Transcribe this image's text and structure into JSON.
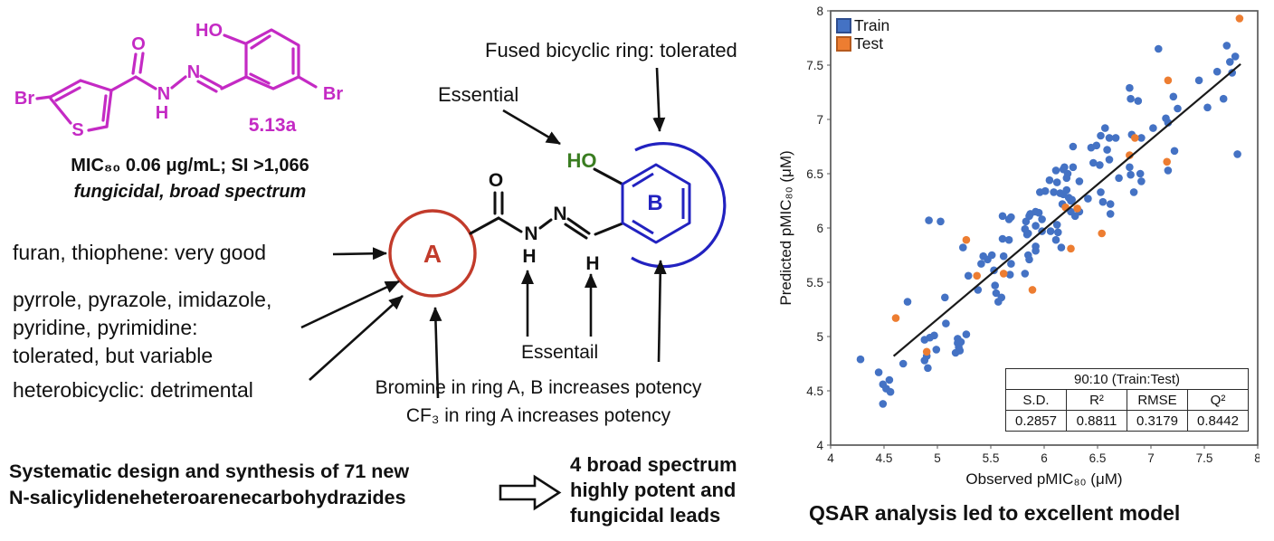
{
  "colors": {
    "lead_structure": "#C42AC4",
    "ring_a": "#C23B2B",
    "ring_b": "#2222C0",
    "hydroxyl_green": "#3A7D21",
    "train_blue": "#4472C4",
    "test_orange": "#ED7D31",
    "trendline": "#1a1a1a"
  },
  "lead_compound": {
    "id": "5.13a",
    "atoms": {
      "br_left": "Br",
      "s": "S",
      "o": "O",
      "n1": "N",
      "h1": "H",
      "n2": "N",
      "ho": "HO",
      "br_right": "Br"
    },
    "mic_line": "MIC₈₀ 0.06 μg/mL; SI >1,066",
    "activity_line": "fungicidal, broad spectrum"
  },
  "sar": {
    "ring_a": "A",
    "ring_b": "B",
    "atoms": {
      "o": "O",
      "n1": "N",
      "h1": "H",
      "n2": "N",
      "h2": "H",
      "ho": "HO"
    },
    "annotations": {
      "fused_ring": "Fused bicyclic ring: tolerated",
      "essential_oh": "Essential",
      "furan": "furan, thiophene: very good",
      "azoles": "pyrrole, pyrazole, imidazole,\npyridine, pyrimidine:\ntolerated, but variable",
      "heterobicyclic": "heterobicyclic: detrimental",
      "essential_linker": "Essentail",
      "bromine": "Bromine in ring A, B increases potency",
      "cf3": "CF₃ in ring A increases potency"
    }
  },
  "summary": {
    "design": "Systematic design and synthesis of 71 new\nN-salicylideneheteroarenecarbohydrazides",
    "outcome": "4 broad spectrum\nhighly potent and\nfungicidal leads"
  },
  "qsar": {
    "caption": "QSAR analysis led to excellent model",
    "table": {
      "title": "90:10 (Train:Test)",
      "columns": [
        "S.D.",
        "R²",
        "RMSE",
        "Q²"
      ],
      "values": [
        "0.2857",
        "0.8811",
        "0.3179",
        "0.8442"
      ]
    }
  },
  "chart_data": {
    "type": "scatter",
    "title": "",
    "xlabel": "Observed pMIC₈₀ (μM)",
    "ylabel": "Predicted pMIC₈₀ (μM)",
    "xlim": [
      4,
      8
    ],
    "ylim": [
      4,
      8
    ],
    "xticks": [
      4,
      4.5,
      5,
      5.5,
      6,
      6.5,
      7,
      7.5,
      8
    ],
    "yticks": [
      4,
      4.5,
      5,
      5.5,
      6,
      6.5,
      7,
      7.5,
      8
    ],
    "grid": false,
    "legend_position": "top-left",
    "trendline": {
      "from": [
        4.59,
        4.82
      ],
      "to": [
        7.84,
        7.51
      ],
      "color": "#1a1a1a"
    },
    "series": [
      {
        "name": "Train",
        "color": "#4472C4",
        "edge": "#2E4D8E",
        "points": [
          [
            4.28,
            4.79
          ],
          [
            4.45,
            4.67
          ],
          [
            4.49,
            4.56
          ],
          [
            4.49,
            4.38
          ],
          [
            4.52,
            4.52
          ],
          [
            4.55,
            4.6
          ],
          [
            4.56,
            4.49
          ],
          [
            4.68,
            4.75
          ],
          [
            4.72,
            5.32
          ],
          [
            4.88,
            4.97
          ],
          [
            4.88,
            4.78
          ],
          [
            4.9,
            4.82
          ],
          [
            4.91,
            4.71
          ],
          [
            4.93,
            4.99
          ],
          [
            4.97,
            5.01
          ],
          [
            4.99,
            4.88
          ],
          [
            5.07,
            5.36
          ],
          [
            5.08,
            5.12
          ],
          [
            5.17,
            4.85
          ],
          [
            5.19,
            4.94
          ],
          [
            5.19,
            4.98
          ],
          [
            5.2,
            4.9
          ],
          [
            5.21,
            4.87
          ],
          [
            5.22,
            4.95
          ],
          [
            5.24,
            5.82
          ],
          [
            5.27,
            5.02
          ],
          [
            5.29,
            5.56
          ],
          [
            5.38,
            5.43
          ],
          [
            5.41,
            5.67
          ],
          [
            5.43,
            5.74
          ],
          [
            5.47,
            5.71
          ],
          [
            5.51,
            5.75
          ],
          [
            5.53,
            5.61
          ],
          [
            5.54,
            5.47
          ],
          [
            5.55,
            5.4
          ],
          [
            5.57,
            5.32
          ],
          [
            5.6,
            5.36
          ],
          [
            5.61,
            5.9
          ],
          [
            5.62,
            5.74
          ],
          [
            5.67,
            5.89
          ],
          [
            5.68,
            5.57
          ],
          [
            5.69,
            5.67
          ],
          [
            5.82,
            5.99
          ],
          [
            5.84,
            5.94
          ],
          [
            5.85,
            5.75
          ],
          [
            5.86,
            5.71
          ],
          [
            5.82,
            5.58
          ],
          [
            5.92,
            5.83
          ],
          [
            5.92,
            5.79
          ],
          [
            5.98,
            5.97
          ],
          [
            4.92,
            6.07
          ],
          [
            5.03,
            6.06
          ],
          [
            5.61,
            6.11
          ],
          [
            5.67,
            6.08
          ],
          [
            5.96,
            6.33
          ],
          [
            5.92,
            6.15
          ],
          [
            5.86,
            6.11
          ],
          [
            5.95,
            6.14
          ],
          [
            5.98,
            6.08
          ],
          [
            6.06,
            5.97
          ],
          [
            6.13,
            5.96
          ],
          [
            6.11,
            5.89
          ],
          [
            6.16,
            5.82
          ],
          [
            6.05,
            6.44
          ],
          [
            6.09,
            6.33
          ],
          [
            6.11,
            6.53
          ],
          [
            6.12,
            6.42
          ],
          [
            6.15,
            6.32
          ],
          [
            6.17,
            6.22
          ],
          [
            6.18,
            6.31
          ],
          [
            6.19,
            6.56
          ],
          [
            6.21,
            6.46
          ],
          [
            6.21,
            6.35
          ],
          [
            6.23,
            6.28
          ],
          [
            6.25,
            6.15
          ],
          [
            6.26,
            6.26
          ],
          [
            6.27,
            6.75
          ],
          [
            6.29,
            6.11
          ],
          [
            6.33,
            6.15
          ],
          [
            6.44,
            6.74
          ],
          [
            6.46,
            6.6
          ],
          [
            6.49,
            6.76
          ],
          [
            6.52,
            6.58
          ],
          [
            6.53,
            6.33
          ],
          [
            6.55,
            6.24
          ],
          [
            6.57,
            6.92
          ],
          [
            6.59,
            6.72
          ],
          [
            6.61,
            6.83
          ],
          [
            6.61,
            6.63
          ],
          [
            6.62,
            6.22
          ],
          [
            6.62,
            6.13
          ],
          [
            6.67,
            6.83
          ],
          [
            6.7,
            6.46
          ],
          [
            6.8,
            7.29
          ],
          [
            6.8,
            6.56
          ],
          [
            6.81,
            7.19
          ],
          [
            6.81,
            6.49
          ],
          [
            6.82,
            6.86
          ],
          [
            6.84,
            6.33
          ],
          [
            6.88,
            7.17
          ],
          [
            6.9,
            6.5
          ],
          [
            6.91,
            6.83
          ],
          [
            6.91,
            6.43
          ],
          [
            7.02,
            6.92
          ],
          [
            7.07,
            7.65
          ],
          [
            7.14,
            7.01
          ],
          [
            7.16,
            6.97
          ],
          [
            7.16,
            6.53
          ],
          [
            7.21,
            7.21
          ],
          [
            7.22,
            6.71
          ],
          [
            7.25,
            7.1
          ],
          [
            7.45,
            7.36
          ],
          [
            7.53,
            7.11
          ],
          [
            7.62,
            7.44
          ],
          [
            7.68,
            7.19
          ],
          [
            7.71,
            7.68
          ],
          [
            7.74,
            7.53
          ],
          [
            7.76,
            7.43
          ],
          [
            7.79,
            7.58
          ],
          [
            7.81,
            6.68
          ],
          [
            6.53,
            6.85
          ],
          [
            6.01,
            6.34
          ],
          [
            6.22,
            6.5
          ],
          [
            6.33,
            6.43
          ],
          [
            6.41,
            6.27
          ],
          [
            5.87,
            6.13
          ],
          [
            5.69,
            6.1
          ],
          [
            5.83,
            6.06
          ],
          [
            5.92,
            6.02
          ],
          [
            6.12,
            6.03
          ],
          [
            5.85,
            5.95
          ],
          [
            6.18,
            6.54
          ],
          [
            6.27,
            6.56
          ],
          [
            6.25,
            6.25
          ]
        ]
      },
      {
        "name": "Test",
        "color": "#ED7D31",
        "edge": "#B55A1E",
        "points": [
          [
            4.61,
            5.17
          ],
          [
            4.9,
            4.86
          ],
          [
            5.27,
            5.89
          ],
          [
            5.37,
            5.56
          ],
          [
            5.62,
            5.58
          ],
          [
            5.89,
            5.43
          ],
          [
            6.2,
            6.19
          ],
          [
            6.31,
            6.18
          ],
          [
            6.25,
            5.81
          ],
          [
            6.54,
            5.95
          ],
          [
            6.8,
            6.67
          ],
          [
            6.85,
            6.83
          ],
          [
            7.15,
            6.61
          ],
          [
            7.16,
            7.36
          ],
          [
            7.83,
            7.93
          ]
        ]
      }
    ]
  }
}
